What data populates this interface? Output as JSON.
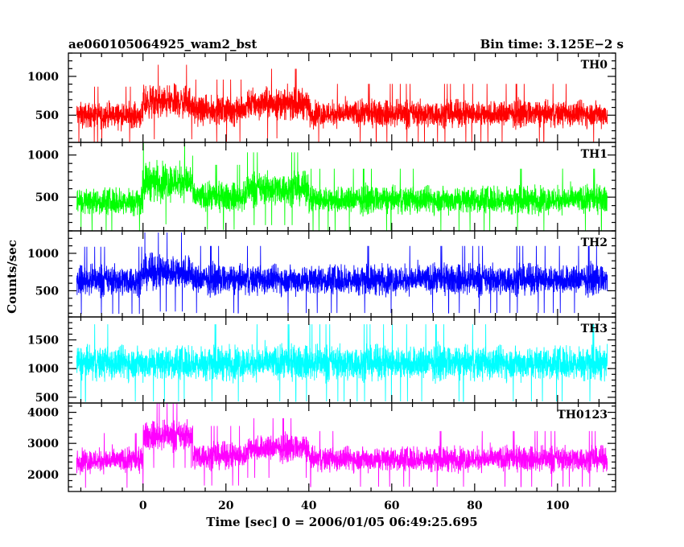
{
  "header": {
    "title": "ae060105064925_wam2_bst",
    "bin_time": "Bin time: 3.125E−2 s"
  },
  "axes": {
    "ylabel": "Counts/sec",
    "xlabel": "Time [sec] 0 = 2006/01/05 06:49:25.695"
  },
  "chart_data": {
    "type": "line",
    "x_range": [
      -16,
      112
    ],
    "xlim": [
      -18,
      114
    ],
    "x_ticks": [
      0,
      20,
      40,
      60,
      80,
      100
    ],
    "bin_time_s": 0.03125,
    "grid": false,
    "panels": [
      {
        "name": "TH0",
        "color": "#ff0000",
        "ylim": [
          150,
          1300
        ],
        "y_ticks": [
          500,
          1000
        ],
        "segments": [
          {
            "x": [
              -16,
              0
            ],
            "mean": 500,
            "spread": 230
          },
          {
            "x": [
              0,
              12
            ],
            "mean": 670,
            "spread": 300
          },
          {
            "x": [
              12,
              25
            ],
            "mean": 560,
            "spread": 250
          },
          {
            "x": [
              25,
              40
            ],
            "mean": 650,
            "spread": 280
          },
          {
            "x": [
              40,
              112
            ],
            "mean": 520,
            "spread": 240
          }
        ]
      },
      {
        "name": "TH1",
        "color": "#00ff00",
        "ylim": [
          100,
          1150
        ],
        "y_ticks": [
          500,
          1000
        ],
        "segments": [
          {
            "x": [
              -16,
              0
            ],
            "mean": 450,
            "spread": 230
          },
          {
            "x": [
              0,
              12
            ],
            "mean": 690,
            "spread": 320
          },
          {
            "x": [
              12,
              25
            ],
            "mean": 500,
            "spread": 240
          },
          {
            "x": [
              25,
              40
            ],
            "mean": 600,
            "spread": 270
          },
          {
            "x": [
              40,
              112
            ],
            "mean": 470,
            "spread": 230
          }
        ]
      },
      {
        "name": "TH2",
        "color": "#0000ff",
        "ylim": [
          150,
          1300
        ],
        "y_ticks": [
          500,
          1000
        ],
        "segments": [
          {
            "x": [
              -16,
              0
            ],
            "mean": 640,
            "spread": 280
          },
          {
            "x": [
              0,
              12
            ],
            "mean": 750,
            "spread": 330
          },
          {
            "x": [
              12,
              112
            ],
            "mean": 650,
            "spread": 280
          }
        ]
      },
      {
        "name": "TH3",
        "color": "#00ffff",
        "ylim": [
          400,
          1900
        ],
        "y_ticks": [
          500,
          1000,
          1500
        ],
        "segments": [
          {
            "x": [
              -16,
              112
            ],
            "mean": 1100,
            "spread": 420
          }
        ]
      },
      {
        "name": "TH0123",
        "color": "#ff00ff",
        "ylim": [
          1450,
          4300
        ],
        "y_ticks": [
          2000,
          3000,
          4000
        ],
        "segments": [
          {
            "x": [
              -16,
              0
            ],
            "mean": 2450,
            "spread": 550
          },
          {
            "x": [
              0,
              12
            ],
            "mean": 3250,
            "spread": 650
          },
          {
            "x": [
              12,
              25
            ],
            "mean": 2600,
            "spread": 600
          },
          {
            "x": [
              25,
              40
            ],
            "mean": 2850,
            "spread": 600
          },
          {
            "x": [
              40,
              112
            ],
            "mean": 2500,
            "spread": 560
          }
        ]
      }
    ]
  }
}
